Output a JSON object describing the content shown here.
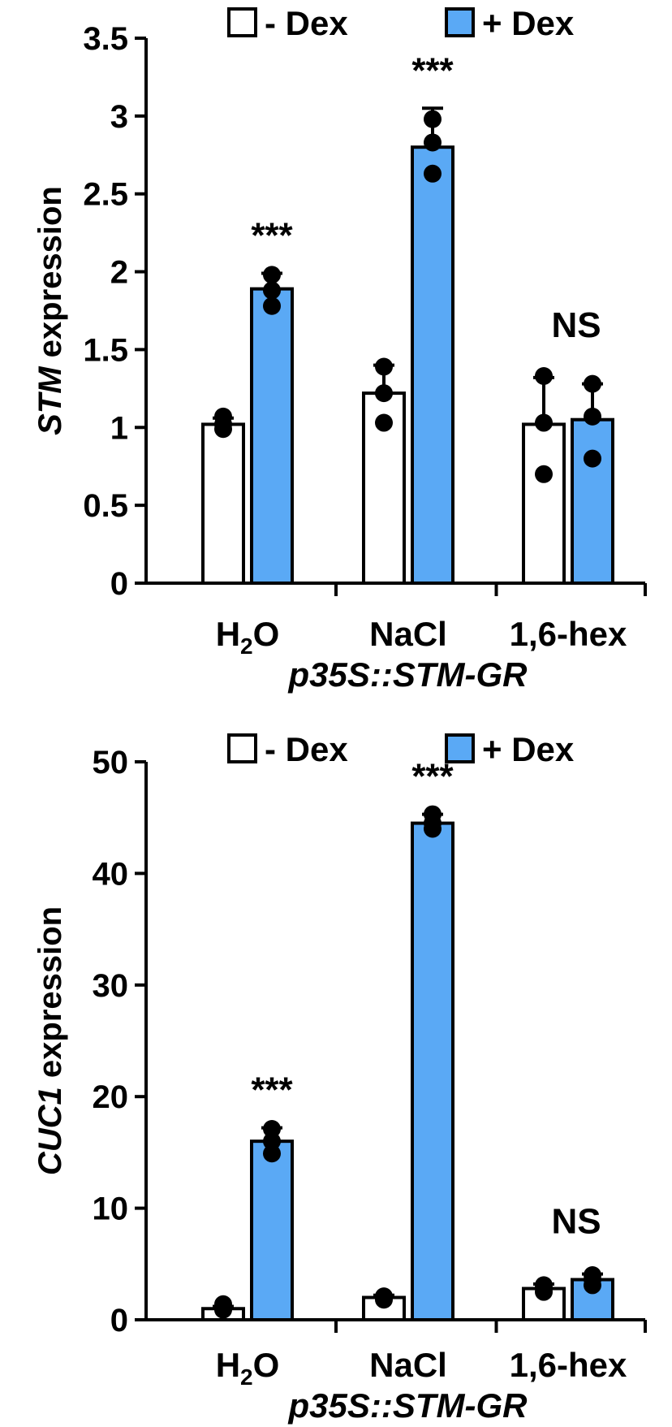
{
  "colors": {
    "minus_dex": "#ffffff",
    "plus_dex": "#5aa9f5",
    "outline": "#000000"
  },
  "chart_data": [
    {
      "type": "bar",
      "ylabel_italic": "STM",
      "ylabel_rest": " expression",
      "xlabel": "p35S::STM-GR",
      "categories": [
        {
          "main": "H",
          "sub": "2",
          "tail": "O"
        },
        {
          "main": "NaCl",
          "sub": "",
          "tail": ""
        },
        {
          "main": "1,6-hex",
          "sub": "",
          "tail": ""
        }
      ],
      "ylim": [
        0,
        3.5
      ],
      "yticks": [
        0,
        0.5,
        1,
        1.5,
        2,
        2.5,
        3,
        3.5
      ],
      "ytick_labels": [
        "0",
        "0.5",
        "1",
        "1.5",
        "2",
        "2.5",
        "3",
        "3.5"
      ],
      "legend": [
        "- Dex",
        "+ Dex"
      ],
      "series": [
        {
          "name": "- Dex",
          "values": [
            1.02,
            1.22,
            1.02
          ],
          "err": [
            0.04,
            0.18,
            0.3
          ],
          "points": [
            [
              0.99,
              1.02,
              1.07
            ],
            [
              1.03,
              1.22,
              1.39
            ],
            [
              0.7,
              1.03,
              1.33
            ]
          ]
        },
        {
          "name": "+ Dex",
          "values": [
            1.89,
            2.8,
            1.05
          ],
          "err": [
            0.1,
            0.25,
            0.23
          ],
          "points": [
            [
              1.78,
              1.88,
              1.98
            ],
            [
              2.63,
              2.83,
              2.98
            ],
            [
              0.8,
              1.07,
              1.28
            ]
          ]
        }
      ],
      "significance": [
        "***",
        "***",
        "NS"
      ]
    },
    {
      "type": "bar",
      "ylabel_italic": "CUC1",
      "ylabel_rest": " expression",
      "xlabel": "p35S::STM-GR",
      "categories": [
        {
          "main": "H",
          "sub": "2",
          "tail": "O"
        },
        {
          "main": "NaCl",
          "sub": "",
          "tail": ""
        },
        {
          "main": "1,6-hex",
          "sub": "",
          "tail": ""
        }
      ],
      "ylim": [
        0,
        50
      ],
      "yticks": [
        0,
        10,
        20,
        30,
        40,
        50
      ],
      "ytick_labels": [
        "0",
        "10",
        "20",
        "30",
        "40",
        "50"
      ],
      "legend": [
        "- Dex",
        "+ Dex"
      ],
      "series": [
        {
          "name": "- Dex",
          "values": [
            1.0,
            2.0,
            2.8
          ],
          "err": [
            0.2,
            0.2,
            0.4
          ],
          "points": [
            [
              0.9,
              1.0,
              1.4
            ],
            [
              1.8,
              2.0,
              2.1
            ],
            [
              2.5,
              2.8,
              3.1
            ]
          ]
        },
        {
          "name": "+ Dex",
          "values": [
            16.0,
            44.5,
            3.6
          ],
          "err": [
            1.2,
            0.8,
            0.5
          ],
          "points": [
            [
              14.9,
              16.0,
              17.1
            ],
            [
              44.0,
              44.5,
              45.3
            ],
            [
              3.1,
              3.6,
              4.0
            ]
          ]
        }
      ],
      "significance": [
        "***",
        "***",
        "NS"
      ]
    }
  ]
}
